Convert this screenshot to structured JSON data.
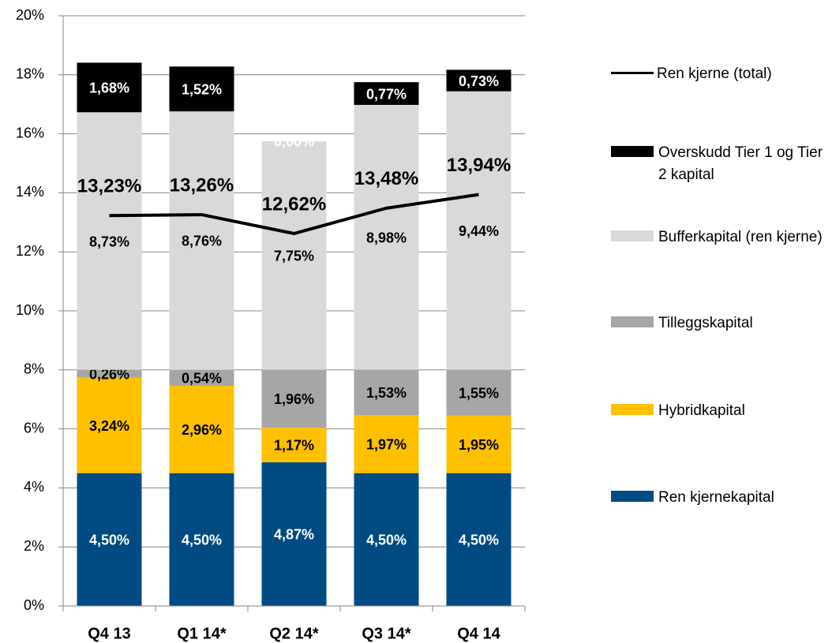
{
  "chart_data": {
    "type": "bar",
    "stacked": true,
    "categories": [
      "Q4 13",
      "Q1 14*",
      "Q2 14*",
      "Q3 14*",
      "Q4 14"
    ],
    "series": [
      {
        "name": "Ren kjernekapital",
        "color": "#004b82",
        "label_color": "#ffffff",
        "values": [
          4.5,
          4.5,
          4.87,
          4.5,
          4.5
        ],
        "value_labels": [
          "4,50%",
          "4,50%",
          "4,87%",
          "4,50%",
          "4,50%"
        ]
      },
      {
        "name": "Hybridkapital",
        "color": "#ffc000",
        "label_color": "#000000",
        "values": [
          3.24,
          2.96,
          1.17,
          1.97,
          1.95
        ],
        "value_labels": [
          "3,24%",
          "2,96%",
          "1,17%",
          "1,97%",
          "1,95%"
        ]
      },
      {
        "name": "Tilleggskapital",
        "color": "#a6a6a6",
        "label_color": "#000000",
        "values": [
          0.26,
          0.54,
          1.96,
          1.53,
          1.55
        ],
        "value_labels": [
          "0,26%",
          "0,54%",
          "1,96%",
          "1,53%",
          "1,55%"
        ]
      },
      {
        "name": "Bufferkapital (ren kjerne)",
        "color": "#d9d9d9",
        "label_color": "#000000",
        "values": [
          8.73,
          8.76,
          7.75,
          8.98,
          9.44
        ],
        "value_labels": [
          "8,73%",
          "8,76%",
          "7,75%",
          "8,98%",
          "9,44%"
        ]
      },
      {
        "name": "Overskudd Tier 1 og Tier 2 kapital",
        "color": "#000000",
        "label_color": "#ffffff",
        "values": [
          1.68,
          1.52,
          0.0,
          0.77,
          0.73
        ],
        "value_labels": [
          "1,68%",
          "1,52%",
          "0,00%",
          "0,77%",
          "0,73%"
        ]
      },
      {
        "name": "Ren kjerne (total)",
        "type": "line",
        "color": "#000000",
        "label_color": "#000000",
        "values": [
          13.23,
          13.26,
          12.62,
          13.48,
          13.94
        ],
        "value_labels": [
          "13,23%",
          "13,26%",
          "12,62%",
          "13,48%",
          "13,94%"
        ]
      }
    ],
    "ylim": [
      0,
      20
    ],
    "yticks": [
      {
        "value": 0,
        "label": "0%"
      },
      {
        "value": 2,
        "label": "2%"
      },
      {
        "value": 4,
        "label": "4%"
      },
      {
        "value": 6,
        "label": "6%"
      },
      {
        "value": 8,
        "label": "8%"
      },
      {
        "value": 10,
        "label": "10%"
      },
      {
        "value": 12,
        "label": "12%"
      },
      {
        "value": 14,
        "label": "14%"
      },
      {
        "value": 16,
        "label": "16%"
      },
      {
        "value": 18,
        "label": "18%"
      },
      {
        "value": 20,
        "label": "20%"
      }
    ],
    "grid": true,
    "legend": "right"
  }
}
